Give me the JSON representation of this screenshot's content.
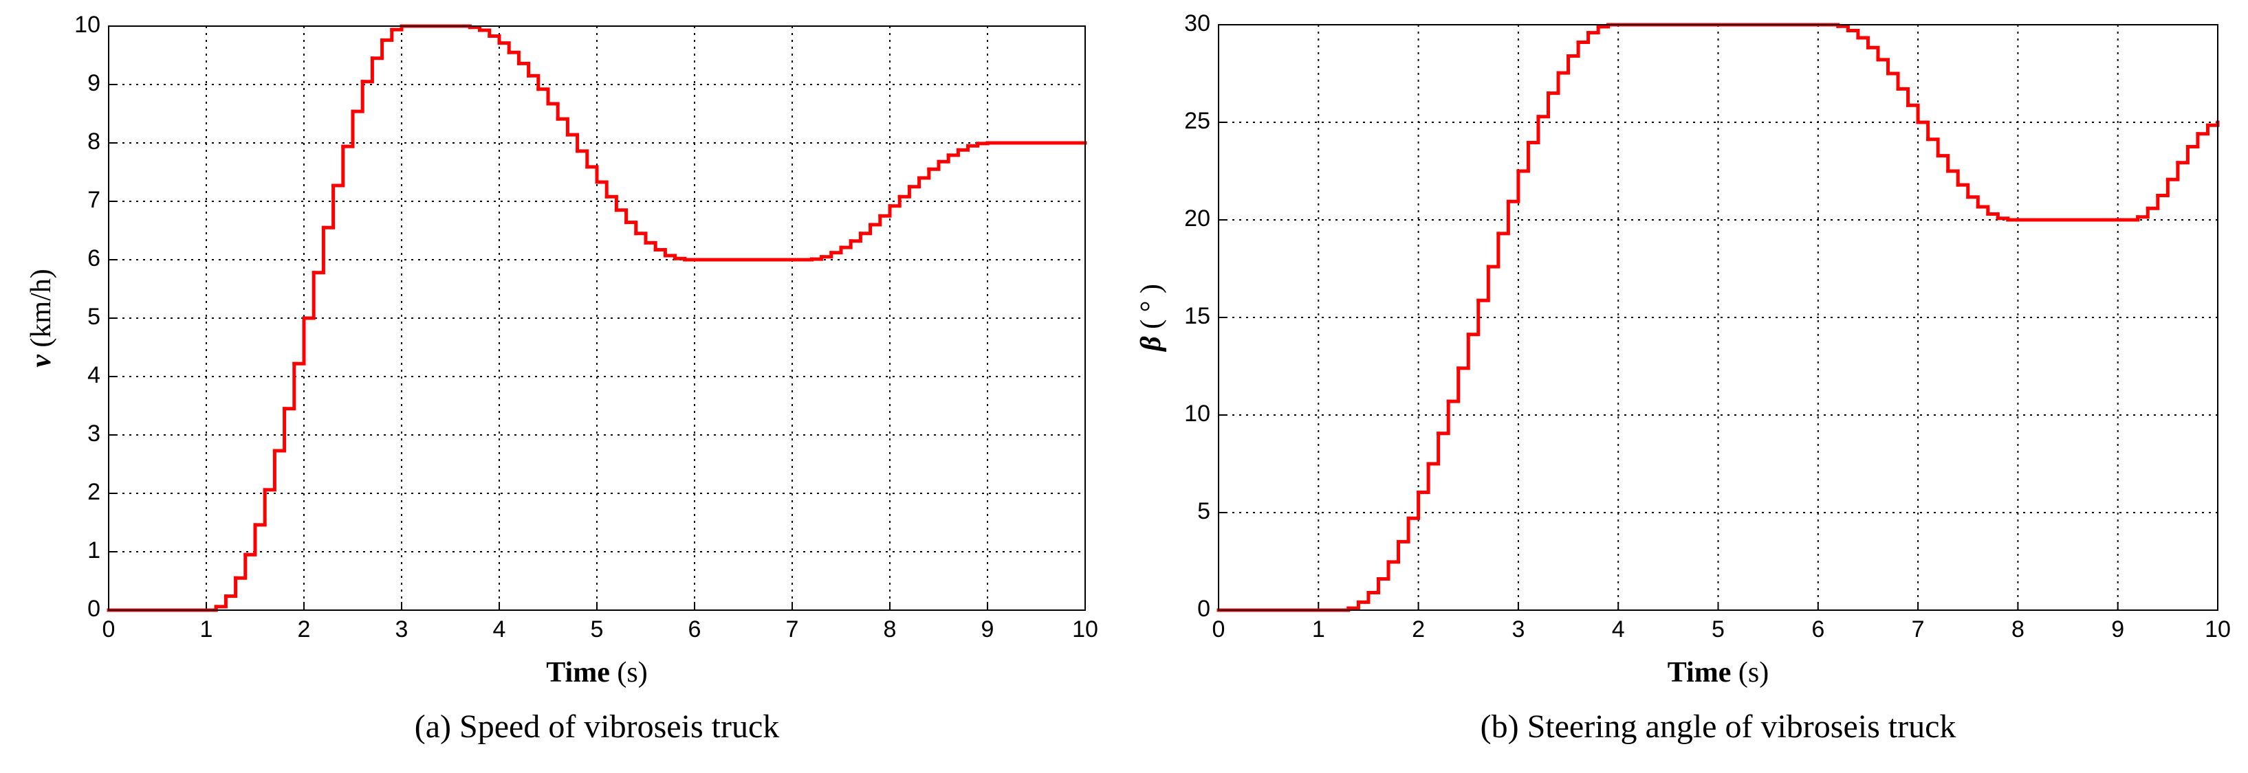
{
  "chart_data": [
    {
      "type": "line",
      "step": "post",
      "color": "#ff0000",
      "grid": true,
      "caption": "(a) Speed of vibroseis truck",
      "xlabel": {
        "symbol": "Time",
        "unit": "(s)"
      },
      "ylabel": {
        "symbol": "v",
        "unit": "(km/h)"
      },
      "xlim": [
        0,
        10
      ],
      "ylim": [
        0,
        10
      ],
      "xticks": [
        0,
        1,
        2,
        3,
        4,
        5,
        6,
        7,
        8,
        9,
        10
      ],
      "yticks": [
        0,
        1,
        2,
        3,
        4,
        5,
        6,
        7,
        8,
        9,
        10
      ],
      "x": [
        0,
        1,
        1.1,
        1.2,
        1.3,
        1.4,
        1.5,
        1.6,
        1.7,
        1.8,
        1.9,
        2,
        2.1,
        2.2,
        2.3,
        2.4,
        2.5,
        2.6,
        2.7,
        2.8,
        2.9,
        3,
        3.6,
        3.7,
        3.8,
        3.9,
        4,
        4.1,
        4.2,
        4.3,
        4.4,
        4.5,
        4.6,
        4.7,
        4.8,
        4.9,
        5,
        5.1,
        5.2,
        5.3,
        5.4,
        5.5,
        5.6,
        5.7,
        5.8,
        5.9,
        7.1,
        7.2,
        7.3,
        7.4,
        7.5,
        7.6,
        7.7,
        7.8,
        7.9,
        8,
        8.1,
        8.2,
        8.3,
        8.4,
        8.5,
        8.6,
        8.7,
        8.8,
        8.9,
        9,
        10
      ],
      "values": [
        0,
        0,
        0.06,
        0.24,
        0.55,
        0.95,
        1.46,
        2.06,
        2.73,
        3.45,
        4.22,
        5,
        5.78,
        6.55,
        7.27,
        7.94,
        8.54,
        9.05,
        9.45,
        9.76,
        9.94,
        10,
        10,
        9.98,
        9.93,
        9.83,
        9.71,
        9.55,
        9.36,
        9.15,
        8.92,
        8.67,
        8.41,
        8.14,
        7.86,
        7.59,
        7.33,
        7.08,
        6.85,
        6.64,
        6.45,
        6.29,
        6.17,
        6.07,
        6.02,
        6,
        6,
        6.01,
        6.05,
        6.12,
        6.21,
        6.32,
        6.45,
        6.6,
        6.75,
        6.92,
        7.08,
        7.25,
        7.4,
        7.55,
        7.68,
        7.79,
        7.88,
        7.95,
        7.99,
        8,
        8
      ]
    },
    {
      "type": "line",
      "step": "post",
      "color": "#ff0000",
      "grid": true,
      "caption": "(b) Steering angle of vibroseis truck",
      "xlabel": {
        "symbol": "Time",
        "unit": "(s)"
      },
      "ylabel": {
        "symbol": "β",
        "unit": "( ° )"
      },
      "xlim": [
        0,
        10
      ],
      "ylim": [
        0,
        30
      ],
      "xticks": [
        0,
        1,
        2,
        3,
        4,
        5,
        6,
        7,
        8,
        9,
        10
      ],
      "yticks": [
        0,
        5,
        10,
        15,
        20,
        25,
        30
      ],
      "x": [
        0,
        1.2,
        1.3,
        1.4,
        1.5,
        1.6,
        1.7,
        1.8,
        1.9,
        2,
        2.1,
        2.2,
        2.3,
        2.4,
        2.5,
        2.6,
        2.7,
        2.8,
        2.9,
        3,
        3.1,
        3.2,
        3.3,
        3.4,
        3.5,
        3.6,
        3.7,
        3.8,
        3.9,
        6.1,
        6.2,
        6.3,
        6.4,
        6.5,
        6.6,
        6.7,
        6.8,
        6.9,
        7,
        7.1,
        7.2,
        7.3,
        7.4,
        7.5,
        7.6,
        7.7,
        7.8,
        7.9,
        9.1,
        9.2,
        9.3,
        9.4,
        9.5,
        9.6,
        9.7,
        9.8,
        9.9,
        10
      ],
      "values": [
        0,
        0,
        0.1,
        0.41,
        0.9,
        1.6,
        2.47,
        3.51,
        4.71,
        6.04,
        7.5,
        9.06,
        10.7,
        12.4,
        14.13,
        15.87,
        17.6,
        19.3,
        20.94,
        22.5,
        23.96,
        25.29,
        26.49,
        27.53,
        28.4,
        29.1,
        29.59,
        29.9,
        30,
        30,
        29.92,
        29.7,
        29.33,
        28.83,
        28.21,
        27.5,
        26.71,
        25.87,
        25,
        24.13,
        23.29,
        22.5,
        21.79,
        21.17,
        20.67,
        20.3,
        20.08,
        20,
        20,
        20.15,
        20.59,
        21.25,
        22.07,
        22.93,
        23.75,
        24.41,
        24.85,
        25
      ]
    }
  ]
}
